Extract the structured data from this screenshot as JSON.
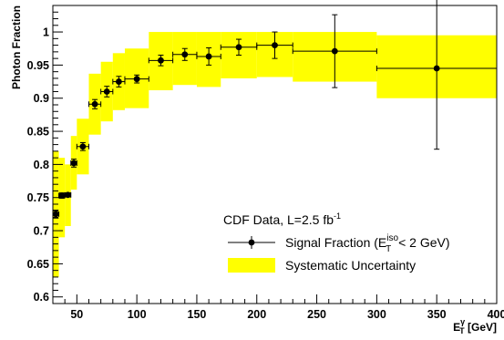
{
  "chart_data": {
    "type": "scatter",
    "title": "",
    "xlabel": {
      "main": "E",
      "sup": "γ",
      "sub": "T",
      "unit": " [GeV]"
    },
    "ylabel": "Photon Fraction",
    "xlim": [
      30,
      400
    ],
    "ylim": [
      0.59,
      1.04
    ],
    "x_ticks": [
      50,
      100,
      150,
      200,
      250,
      300,
      350,
      400
    ],
    "y_ticks": [
      0.6,
      0.65,
      0.7,
      0.75,
      0.8,
      0.85,
      0.9,
      0.95,
      1
    ],
    "x_tick_labels": [
      "50",
      "100",
      "150",
      "200",
      "250",
      "300",
      "350",
      "400"
    ],
    "y_tick_labels": [
      "0.6",
      "0.65",
      "0.7",
      "0.75",
      "0.8",
      "0.85",
      "0.9",
      "0.95",
      "1"
    ],
    "grid": false,
    "legend": {
      "position": "bottom-right",
      "header": {
        "main": "CDF Data, L=2.5 fb",
        "sup": "-1"
      },
      "entries": [
        {
          "kind": "marker",
          "parts": {
            "pre": "Signal Fraction (E",
            "sup": "iso",
            "sub": "T",
            "post": " < 2 GeV)"
          }
        },
        {
          "kind": "band",
          "label": "Systematic Uncertainty"
        }
      ]
    },
    "colors": {
      "band": "#ffff00",
      "marker": "#000000",
      "background": "#ffffff"
    },
    "series": [
      {
        "name": "Signal Fraction (E_T^iso < 2 GeV)",
        "points": [
          {
            "x": 32.5,
            "xlo": 30,
            "xhi": 35,
            "y": 0.725,
            "ey": 0.006
          },
          {
            "x": 37.5,
            "xlo": 35,
            "xhi": 40,
            "y": 0.753,
            "ey": 0.004
          },
          {
            "x": 42.5,
            "xlo": 40,
            "xhi": 45,
            "y": 0.754,
            "ey": 0.003
          },
          {
            "x": 47.5,
            "xlo": 45,
            "xhi": 50,
            "y": 0.802,
            "ey": 0.006
          },
          {
            "x": 55,
            "xlo": 50,
            "xhi": 60,
            "y": 0.827,
            "ey": 0.006
          },
          {
            "x": 65,
            "xlo": 60,
            "xhi": 70,
            "y": 0.891,
            "ey": 0.007
          },
          {
            "x": 75,
            "xlo": 70,
            "xhi": 80,
            "y": 0.91,
            "ey": 0.008
          },
          {
            "x": 85,
            "xlo": 80,
            "xhi": 90,
            "y": 0.925,
            "ey": 0.008
          },
          {
            "x": 100,
            "xlo": 90,
            "xhi": 110,
            "y": 0.929,
            "ey": 0.006
          },
          {
            "x": 120,
            "xlo": 110,
            "xhi": 130,
            "y": 0.957,
            "ey": 0.008
          },
          {
            "x": 140,
            "xlo": 130,
            "xhi": 150,
            "y": 0.966,
            "ey": 0.009
          },
          {
            "x": 160,
            "xlo": 150,
            "xhi": 170,
            "y": 0.963,
            "ey": 0.013
          },
          {
            "x": 185,
            "xlo": 170,
            "xhi": 200,
            "y": 0.977,
            "ey": 0.012
          },
          {
            "x": 215,
            "xlo": 200,
            "xhi": 230,
            "y": 0.98,
            "ey": 0.02
          },
          {
            "x": 265,
            "xlo": 230,
            "xhi": 300,
            "y": 0.971,
            "ey": 0.055
          },
          {
            "x": 350,
            "xlo": 300,
            "xhi": 400,
            "y": 0.945,
            "ey": 0.122
          }
        ]
      }
    ],
    "systematic_band": [
      {
        "xlo": 30,
        "xhi": 35,
        "ylo": 0.63,
        "yhi": 0.82
      },
      {
        "xlo": 35,
        "xhi": 40,
        "ylo": 0.69,
        "yhi": 0.81
      },
      {
        "xlo": 40,
        "xhi": 45,
        "ylo": 0.707,
        "yhi": 0.8
      },
      {
        "xlo": 45,
        "xhi": 50,
        "ylo": 0.762,
        "yhi": 0.843
      },
      {
        "xlo": 50,
        "xhi": 60,
        "ylo": 0.785,
        "yhi": 0.869
      },
      {
        "xlo": 60,
        "xhi": 70,
        "ylo": 0.845,
        "yhi": 0.937
      },
      {
        "xlo": 70,
        "xhi": 80,
        "ylo": 0.865,
        "yhi": 0.955
      },
      {
        "xlo": 80,
        "xhi": 90,
        "ylo": 0.882,
        "yhi": 0.968
      },
      {
        "xlo": 90,
        "xhi": 110,
        "ylo": 0.885,
        "yhi": 0.975
      },
      {
        "xlo": 110,
        "xhi": 130,
        "ylo": 0.912,
        "yhi": 1.0
      },
      {
        "xlo": 130,
        "xhi": 150,
        "ylo": 0.92,
        "yhi": 1.0
      },
      {
        "xlo": 150,
        "xhi": 170,
        "ylo": 0.917,
        "yhi": 1.0
      },
      {
        "xlo": 170,
        "xhi": 200,
        "ylo": 0.93,
        "yhi": 1.0
      },
      {
        "xlo": 200,
        "xhi": 230,
        "ylo": 0.932,
        "yhi": 1.0
      },
      {
        "xlo": 230,
        "xhi": 300,
        "ylo": 0.925,
        "yhi": 1.0
      },
      {
        "xlo": 300,
        "xhi": 400,
        "ylo": 0.9,
        "yhi": 0.995
      }
    ]
  }
}
